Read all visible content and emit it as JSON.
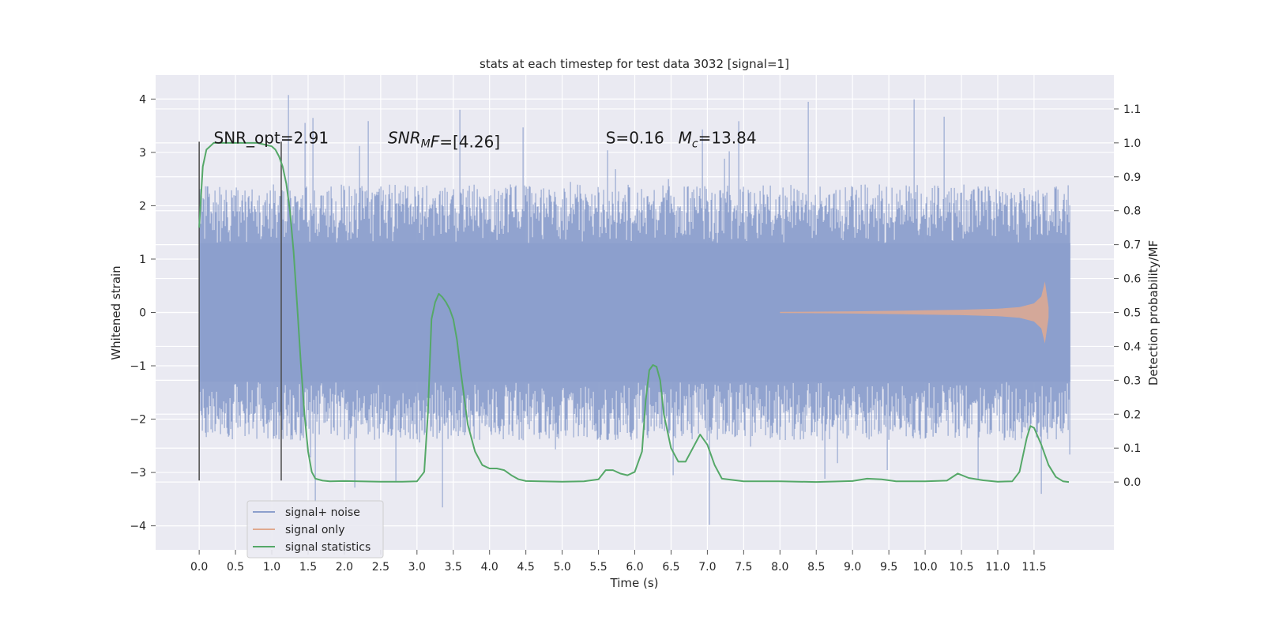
{
  "chart_data": {
    "type": "line",
    "title": "stats at each timestep for test data 3032 [signal=1]",
    "xlabel": "Time (s)",
    "ylabel": "Whitened strain",
    "ylabel_right": "Detection probability/MF",
    "xlim": [
      -0.6,
      12.6
    ],
    "ylim": [
      -4.45,
      4.45
    ],
    "ylim_right": [
      -0.2,
      1.2
    ],
    "x_ticks": [
      "0.0",
      "0.5",
      "1.0",
      "1.5",
      "2.0",
      "2.5",
      "3.0",
      "3.5",
      "4.0",
      "4.5",
      "5.0",
      "5.5",
      "6.0",
      "6.5",
      "7.0",
      "7.5",
      "8.0",
      "8.5",
      "9.0",
      "9.5",
      "10.0",
      "10.5",
      "11.0",
      "11.5"
    ],
    "y_ticks": [
      "4",
      "3",
      "2",
      "1",
      "0",
      "−1",
      "−2",
      "−3",
      "−4"
    ],
    "y_ticks_right": [
      "1.1",
      "1.0",
      "0.9",
      "0.8",
      "0.7",
      "0.6",
      "0.5",
      "0.4",
      "0.3",
      "0.2",
      "0.1",
      "0.0"
    ],
    "grid": true,
    "legend_position": "lower-left",
    "series": [
      {
        "name": "signal+ noise",
        "color": "#8c9fcc",
        "kind": "noise-band",
        "x_range": [
          0.0,
          12.0
        ],
        "core_amplitude": 1.3,
        "typical_peak": 2.4,
        "max_peak": 4.1,
        "min_peak": -4.0
      },
      {
        "name": "signal only",
        "color": "#e0a98f",
        "kind": "chirp",
        "x": [
          8.0,
          8.5,
          9.0,
          9.5,
          10.0,
          10.5,
          11.0,
          11.3,
          11.5,
          11.6,
          11.65,
          11.7
        ],
        "amplitude": [
          0.01,
          0.015,
          0.02,
          0.03,
          0.04,
          0.05,
          0.07,
          0.1,
          0.17,
          0.3,
          0.58,
          0.1
        ]
      },
      {
        "name": "signal statistics",
        "color": "#55a868",
        "axis": "right",
        "x": [
          0.0,
          0.05,
          0.1,
          0.15,
          0.2,
          0.3,
          0.5,
          0.7,
          0.8,
          0.9,
          1.0,
          1.05,
          1.1,
          1.15,
          1.2,
          1.25,
          1.3,
          1.35,
          1.4,
          1.45,
          1.5,
          1.55,
          1.6,
          1.7,
          1.8,
          2.0,
          2.2,
          2.5,
          2.8,
          3.0,
          3.1,
          3.15,
          3.2,
          3.25,
          3.3,
          3.35,
          3.4,
          3.45,
          3.5,
          3.55,
          3.6,
          3.7,
          3.8,
          3.9,
          4.0,
          4.1,
          4.2,
          4.3,
          4.4,
          4.5,
          4.7,
          5.0,
          5.3,
          5.5,
          5.6,
          5.7,
          5.8,
          5.9,
          6.0,
          6.1,
          6.15,
          6.2,
          6.25,
          6.3,
          6.35,
          6.4,
          6.5,
          6.6,
          6.7,
          6.8,
          6.9,
          7.0,
          7.1,
          7.2,
          7.5,
          8.0,
          8.5,
          9.0,
          9.2,
          9.4,
          9.6,
          10.0,
          10.3,
          10.45,
          10.6,
          10.8,
          11.0,
          11.2,
          11.3,
          11.4,
          11.45,
          11.5,
          11.6,
          11.7,
          11.8,
          11.9,
          11.98
        ],
        "y": [
          0.75,
          0.93,
          0.98,
          0.99,
          1.0,
          1.0,
          1.0,
          1.0,
          1.0,
          0.995,
          0.99,
          0.98,
          0.96,
          0.93,
          0.88,
          0.8,
          0.68,
          0.52,
          0.35,
          0.2,
          0.09,
          0.03,
          0.01,
          0.004,
          0.002,
          0.003,
          0.002,
          0.001,
          0.001,
          0.002,
          0.03,
          0.2,
          0.48,
          0.53,
          0.555,
          0.545,
          0.53,
          0.51,
          0.48,
          0.42,
          0.33,
          0.17,
          0.09,
          0.05,
          0.04,
          0.04,
          0.035,
          0.02,
          0.008,
          0.003,
          0.002,
          0.001,
          0.002,
          0.008,
          0.035,
          0.035,
          0.025,
          0.02,
          0.03,
          0.09,
          0.24,
          0.33,
          0.345,
          0.34,
          0.3,
          0.2,
          0.1,
          0.06,
          0.06,
          0.1,
          0.14,
          0.11,
          0.05,
          0.01,
          0.002,
          0.002,
          0.0,
          0.003,
          0.01,
          0.008,
          0.002,
          0.002,
          0.004,
          0.025,
          0.012,
          0.005,
          0.001,
          0.002,
          0.03,
          0.13,
          0.165,
          0.16,
          0.11,
          0.05,
          0.015,
          0.002,
          0.0
        ]
      }
    ],
    "vertical_lines": [
      {
        "x": 0.0,
        "y_from": -3.15,
        "y_to": 3.2
      },
      {
        "x": 1.13,
        "y_from": -3.15,
        "y_to": 3.2
      }
    ],
    "annotations": [
      {
        "id": "snr-opt",
        "text": "SNR_opt=2.91",
        "x": 0.2,
        "y": 3.17
      },
      {
        "id": "snr-mf",
        "text": "SNR",
        "sub": "M",
        "rest": "F=[4.26]",
        "x": 2.6,
        "y": 3.17
      },
      {
        "id": "spin",
        "text": "S=0.16",
        "x": 5.6,
        "y": 3.17
      },
      {
        "id": "mc",
        "text": "M",
        "sub": "c",
        "rest": "=13.84",
        "x": 6.6,
        "y": 3.17
      }
    ]
  }
}
